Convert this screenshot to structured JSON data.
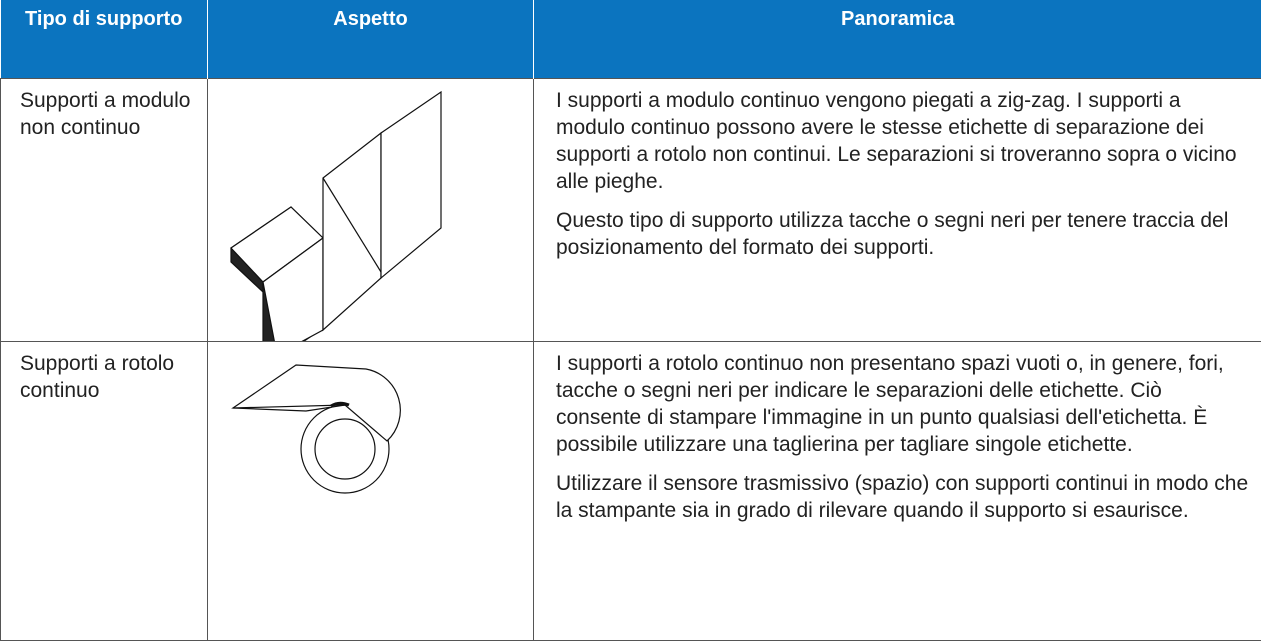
{
  "table": {
    "headers": [
      "Tipo di supporto",
      "Aspetto",
      "Panoramica"
    ],
    "rows": [
      {
        "type": "Supporti a modulo non continuo",
        "overview": [
          "I supporti a modulo continuo vengono piegati a zig-zag. I supporti a modulo continuo possono avere le stesse etichette di separazione dei supporti a rotolo non continui. Le separazioni si troveranno sopra o vicino alle pieghe.",
          "Questo tipo di supporto utilizza tacche o segni neri per tenere traccia del posizionamento del formato dei supporti."
        ]
      },
      {
        "type": "Supporti a rotolo continuo",
        "overview": [
          "I supporti a rotolo continuo non presentano spazi vuoti o, in genere, fori, tacche o segni neri per indicare le separazioni delle etichette. Ciò consente di stampare l'immagine in un punto qualsiasi dell'etichetta. È possibile utilizzare una taglierina per tagliare singole etichette.",
          "Utilizzare il sensore trasmissivo (spazio) con supporti continui in modo che la stampante sia in grado di rilevare quando il supporto si esaurisce."
        ]
      }
    ]
  }
}
